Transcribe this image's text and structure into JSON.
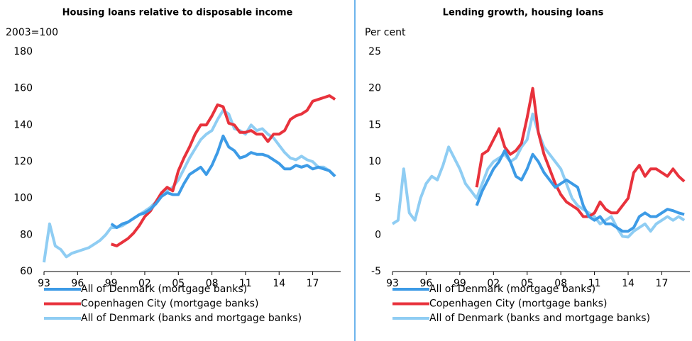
{
  "chart_data": [
    {
      "type": "line",
      "title": "Housing loans relative to disposable income",
      "ylabel": "2003=100",
      "x": [
        1993,
        1993.5,
        1994,
        1994.5,
        1995,
        1995.5,
        1996,
        1996.5,
        1997,
        1997.5,
        1998,
        1998.5,
        1999,
        1999.5,
        2000,
        2000.5,
        2001,
        2001.5,
        2002,
        2002.5,
        2003,
        2003.5,
        2004,
        2004.5,
        2005,
        2005.5,
        2006,
        2006.5,
        2007,
        2007.5,
        2008,
        2008.5,
        2009,
        2009.5,
        2010,
        2010.5,
        2011,
        2011.5,
        2012,
        2012.5,
        2013,
        2013.5,
        2014,
        2014.5,
        2015,
        2015.5,
        2016,
        2016.5,
        2017,
        2017.5,
        2018,
        2018.5,
        2019
      ],
      "xlim": [
        1993,
        2019.5
      ],
      "xticks": [
        {
          "value": 1993,
          "label": "93"
        },
        {
          "value": 1996,
          "label": "96"
        },
        {
          "value": 1999,
          "label": "99"
        },
        {
          "value": 2002,
          "label": "02"
        },
        {
          "value": 2005,
          "label": "05"
        },
        {
          "value": 2008,
          "label": "08"
        },
        {
          "value": 2011,
          "label": "11"
        },
        {
          "value": 2014,
          "label": "14"
        },
        {
          "value": 2017,
          "label": "17"
        }
      ],
      "ylim": [
        60,
        180
      ],
      "yticks": [
        60,
        80,
        100,
        120,
        140,
        160,
        180
      ],
      "legend": "bottom",
      "series": [
        {
          "name": "All of Denmark (mortgage banks)",
          "color": "#3d9be6",
          "values": [
            null,
            null,
            null,
            null,
            null,
            null,
            null,
            null,
            null,
            null,
            null,
            null,
            86,
            84,
            86,
            87,
            89,
            91,
            92,
            94,
            97,
            101,
            103,
            102,
            102,
            108,
            113,
            115,
            117,
            113,
            118,
            125,
            134,
            128,
            126,
            122,
            123,
            125,
            124,
            124,
            123,
            121,
            119,
            116,
            116,
            118,
            117,
            118,
            116,
            117,
            116,
            115,
            112
          ]
        },
        {
          "name": "Copenhagen City (mortgage banks)",
          "color": "#e8323c",
          "values": [
            null,
            null,
            null,
            null,
            null,
            null,
            null,
            null,
            null,
            null,
            null,
            null,
            75,
            74,
            76,
            78,
            81,
            85,
            90,
            93,
            98,
            103,
            106,
            104,
            115,
            122,
            128,
            135,
            140,
            140,
            145,
            151,
            150,
            141,
            140,
            136,
            136,
            137,
            135,
            135,
            131,
            135,
            135,
            137,
            143,
            145,
            146,
            148,
            153,
            154,
            155,
            156,
            154
          ]
        },
        {
          "name": "All of Denmark (banks and mortgage banks)",
          "color": "#8fcdf3",
          "values": [
            65,
            86,
            74,
            72,
            68,
            70,
            71,
            72,
            73,
            75,
            77,
            80,
            84,
            84,
            85,
            87,
            89,
            91,
            93,
            95,
            98,
            102,
            104,
            106,
            110,
            116,
            122,
            127,
            132,
            135,
            137,
            143,
            148,
            146,
            138,
            137,
            135,
            140,
            137,
            138,
            135,
            133,
            129,
            125,
            122,
            121,
            123,
            121,
            120,
            117,
            117,
            115,
            112
          ]
        }
      ]
    },
    {
      "type": "line",
      "title": "Lending growth, housing loans",
      "ylabel": "Per cent",
      "x": [
        1993,
        1993.5,
        1994,
        1994.5,
        1995,
        1995.5,
        1996,
        1996.5,
        1997,
        1997.5,
        1998,
        1998.5,
        1999,
        1999.5,
        2000,
        2000.5,
        2001,
        2001.5,
        2002,
        2002.5,
        2003,
        2003.5,
        2004,
        2004.5,
        2005,
        2005.5,
        2006,
        2006.5,
        2007,
        2007.5,
        2008,
        2008.5,
        2009,
        2009.5,
        2010,
        2010.5,
        2011,
        2011.5,
        2012,
        2012.5,
        2013,
        2013.5,
        2014,
        2014.5,
        2015,
        2015.5,
        2016,
        2016.5,
        2017,
        2017.5,
        2018,
        2018.5,
        2019
      ],
      "xlim": [
        1993,
        2019.5
      ],
      "xticks": [
        {
          "value": 1993,
          "label": "93"
        },
        {
          "value": 1996,
          "label": "96"
        },
        {
          "value": 1999,
          "label": "99"
        },
        {
          "value": 2002,
          "label": "02"
        },
        {
          "value": 2005,
          "label": "05"
        },
        {
          "value": 2008,
          "label": "08"
        },
        {
          "value": 2011,
          "label": "11"
        },
        {
          "value": 2014,
          "label": "14"
        },
        {
          "value": 2017,
          "label": "17"
        }
      ],
      "ylim": [
        -5,
        25
      ],
      "yticks": [
        -5,
        0,
        5,
        10,
        15,
        20,
        25
      ],
      "legend": "bottom",
      "series": [
        {
          "name": "All of Denmark (mortgage banks)",
          "color": "#3d9be6",
          "values": [
            null,
            null,
            null,
            null,
            null,
            null,
            null,
            null,
            null,
            null,
            null,
            null,
            null,
            null,
            null,
            4,
            6,
            7.5,
            9,
            10,
            11.5,
            10,
            8,
            7.5,
            9,
            11,
            10,
            8.5,
            7.5,
            6.5,
            7,
            7.5,
            7,
            6.5,
            4,
            2.5,
            2,
            2.5,
            1.5,
            1.5,
            1,
            0.5,
            0.5,
            1,
            2.5,
            3,
            2.5,
            2.5,
            3,
            3.5,
            3.3,
            3,
            2.8
          ]
        },
        {
          "name": "Copenhagen City (mortgage banks)",
          "color": "#e8323c",
          "values": [
            null,
            null,
            null,
            null,
            null,
            null,
            null,
            null,
            null,
            null,
            null,
            null,
            null,
            null,
            null,
            6.5,
            11,
            11.5,
            13,
            14.5,
            12,
            11,
            11.5,
            12.5,
            16,
            20,
            14,
            11,
            9,
            7,
            5.5,
            4.5,
            4,
            3.5,
            2.5,
            2.5,
            3,
            4.5,
            3.5,
            3,
            3,
            4,
            5,
            8.5,
            9.5,
            8,
            9,
            9,
            8.5,
            8,
            9,
            8,
            7.3
          ]
        },
        {
          "name": "All of Denmark (banks and mortgage banks)",
          "color": "#8fcdf3",
          "values": [
            1.5,
            2,
            9,
            3,
            2,
            5,
            7,
            8,
            7.5,
            9.5,
            12,
            10.5,
            9,
            7,
            6,
            5,
            7,
            9,
            10,
            10.5,
            11,
            10,
            10.5,
            12,
            13,
            16.5,
            14,
            12,
            11,
            10,
            9,
            7,
            5,
            4,
            3.5,
            3,
            2.5,
            1.5,
            2,
            2.5,
            1,
            -0.2,
            -0.3,
            0.5,
            1,
            1.5,
            0.5,
            1.5,
            2,
            2.5,
            2,
            2.5,
            2
          ]
        }
      ]
    }
  ]
}
